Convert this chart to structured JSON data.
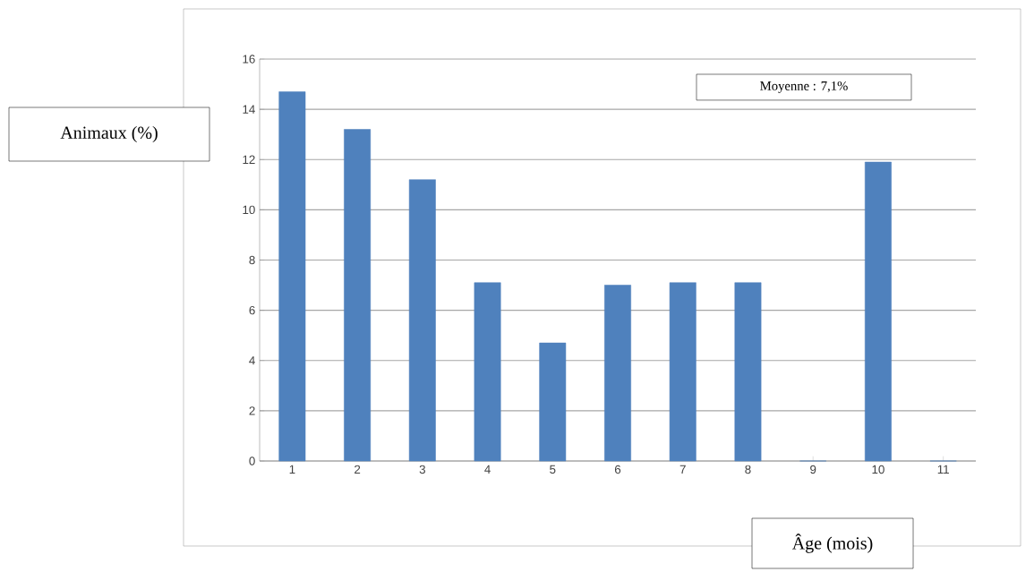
{
  "chart_data": {
    "type": "bar",
    "categories": [
      "1",
      "2",
      "3",
      "4",
      "5",
      "6",
      "7",
      "8",
      "9",
      "10",
      "11"
    ],
    "values": [
      14.7,
      13.2,
      11.2,
      7.1,
      4.7,
      7.0,
      7.1,
      7.1,
      0,
      11.9,
      0
    ],
    "color": "#4f81bd",
    "ylim": [
      0,
      16
    ],
    "yticks": [
      0,
      2,
      4,
      6,
      8,
      10,
      12,
      14,
      16
    ],
    "grid": "y",
    "xlabel": "Âge (mois)",
    "ylabel": "Animaux (%)",
    "annotations": [
      "Moyenne : 7,1%"
    ]
  }
}
